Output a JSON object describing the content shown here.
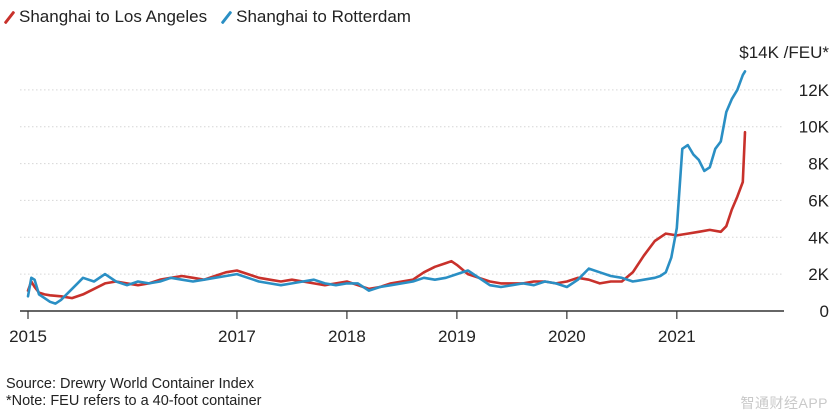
{
  "legend": [
    {
      "label": "Shanghai to Los Angeles",
      "color": "#c8312b"
    },
    {
      "label": "Shanghai to Rotterdam",
      "color": "#2a8fc4"
    }
  ],
  "notes": {
    "source": "Source: Drewry World Container Index",
    "note": "*Note: FEU refers to a 40-foot container"
  },
  "watermark": "智通财经APP",
  "chart_data": {
    "type": "line",
    "title": "",
    "xlabel": "",
    "ylabel": "",
    "unit_label": "$14K /FEU*",
    "xlim": [
      2015.0,
      2021.72
    ],
    "ylim": [
      0,
      14000
    ],
    "grid": true,
    "y_axis_side": "right",
    "legend_position": "top-left",
    "x_ticks": [
      {
        "value": 2015,
        "label": "2015"
      },
      {
        "value": 2016.9,
        "label": "2017"
      },
      {
        "value": 2017.9,
        "label": "2018"
      },
      {
        "value": 2018.9,
        "label": "2019"
      },
      {
        "value": 2019.9,
        "label": "2020"
      },
      {
        "value": 2020.9,
        "label": "2021"
      }
    ],
    "y_ticks": [
      {
        "value": 0,
        "label": "0"
      },
      {
        "value": 2000,
        "label": "2K"
      },
      {
        "value": 4000,
        "label": "4K"
      },
      {
        "value": 6000,
        "label": "6K"
      },
      {
        "value": 8000,
        "label": "8K"
      },
      {
        "value": 10000,
        "label": "10K"
      },
      {
        "value": 12000,
        "label": "12K"
      }
    ],
    "series": [
      {
        "name": "Shanghai to Los Angeles",
        "color": "#c8312b",
        "x": [
          2015.0,
          2015.03,
          2015.06,
          2015.1,
          2015.15,
          2015.2,
          2015.3,
          2015.4,
          2015.5,
          2015.6,
          2015.7,
          2015.8,
          2015.9,
          2016.0,
          2016.1,
          2016.2,
          2016.3,
          2016.4,
          2016.5,
          2016.6,
          2016.7,
          2016.8,
          2016.9,
          2017.0,
          2017.1,
          2017.2,
          2017.3,
          2017.4,
          2017.5,
          2017.6,
          2017.7,
          2017.8,
          2017.9,
          2018.0,
          2018.1,
          2018.2,
          2018.3,
          2018.4,
          2018.5,
          2018.6,
          2018.7,
          2018.8,
          2018.85,
          2018.9,
          2019.0,
          2019.1,
          2019.2,
          2019.3,
          2019.4,
          2019.5,
          2019.6,
          2019.7,
          2019.8,
          2019.9,
          2020.0,
          2020.1,
          2020.2,
          2020.3,
          2020.4,
          2020.5,
          2020.6,
          2020.7,
          2020.8,
          2020.9,
          2021.0,
          2021.1,
          2021.2,
          2021.3,
          2021.35,
          2021.4,
          2021.45,
          2021.5,
          2021.52
        ],
        "y": [
          1100,
          1600,
          1300,
          1000,
          900,
          850,
          800,
          700,
          900,
          1200,
          1500,
          1600,
          1500,
          1400,
          1500,
          1700,
          1800,
          1900,
          1800,
          1700,
          1900,
          2100,
          2200,
          2000,
          1800,
          1700,
          1600,
          1700,
          1600,
          1500,
          1400,
          1500,
          1600,
          1400,
          1200,
          1300,
          1500,
          1600,
          1700,
          2100,
          2400,
          2600,
          2700,
          2500,
          2000,
          1800,
          1600,
          1500,
          1500,
          1500,
          1600,
          1600,
          1500,
          1600,
          1800,
          1700,
          1500,
          1600,
          1600,
          2100,
          3000,
          3800,
          4200,
          4100,
          4200,
          4300,
          4400,
          4300,
          4600,
          5500,
          6200,
          7000,
          9700
        ]
      },
      {
        "name": "Shanghai to Rotterdam",
        "color": "#2a8fc4",
        "x": [
          2015.0,
          2015.03,
          2015.06,
          2015.1,
          2015.15,
          2015.2,
          2015.25,
          2015.3,
          2015.35,
          2015.4,
          2015.45,
          2015.5,
          2015.6,
          2015.7,
          2015.8,
          2015.9,
          2016.0,
          2016.1,
          2016.2,
          2016.3,
          2016.4,
          2016.5,
          2016.6,
          2016.7,
          2016.8,
          2016.9,
          2017.0,
          2017.1,
          2017.2,
          2017.3,
          2017.4,
          2017.5,
          2017.6,
          2017.7,
          2017.8,
          2017.9,
          2018.0,
          2018.1,
          2018.2,
          2018.3,
          2018.4,
          2018.5,
          2018.6,
          2018.7,
          2018.8,
          2018.9,
          2019.0,
          2019.1,
          2019.2,
          2019.3,
          2019.4,
          2019.5,
          2019.6,
          2019.7,
          2019.8,
          2019.9,
          2020.0,
          2020.1,
          2020.2,
          2020.3,
          2020.4,
          2020.5,
          2020.6,
          2020.7,
          2020.75,
          2020.8,
          2020.85,
          2020.9,
          2020.95,
          2021.0,
          2021.05,
          2021.1,
          2021.15,
          2021.2,
          2021.25,
          2021.3,
          2021.35,
          2021.4,
          2021.45,
          2021.5,
          2021.52
        ],
        "y": [
          800,
          1800,
          1700,
          900,
          700,
          500,
          400,
          600,
          900,
          1200,
          1500,
          1800,
          1600,
          2000,
          1600,
          1400,
          1600,
          1500,
          1600,
          1800,
          1700,
          1600,
          1700,
          1800,
          1900,
          2000,
          1800,
          1600,
          1500,
          1400,
          1500,
          1600,
          1700,
          1500,
          1400,
          1500,
          1500,
          1100,
          1300,
          1400,
          1500,
          1600,
          1800,
          1700,
          1800,
          2000,
          2200,
          1800,
          1400,
          1300,
          1400,
          1500,
          1400,
          1600,
          1500,
          1300,
          1700,
          2300,
          2100,
          1900,
          1800,
          1600,
          1700,
          1800,
          1900,
          2100,
          2900,
          4500,
          8800,
          9000,
          8500,
          8200,
          7600,
          7800,
          8800,
          9200,
          10800,
          11500,
          12000,
          12800,
          13000
        ]
      }
    ]
  }
}
